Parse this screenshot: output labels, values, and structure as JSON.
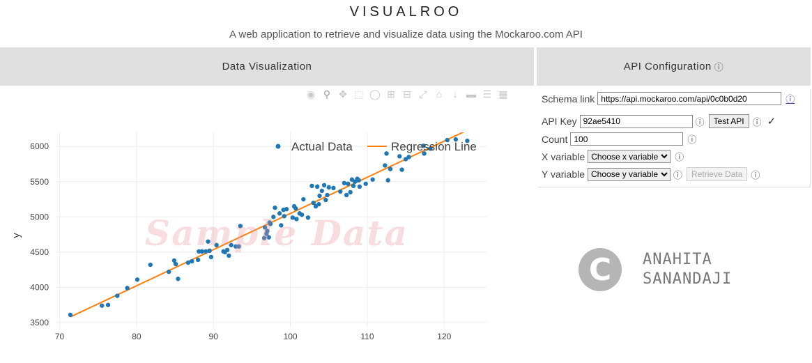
{
  "app": {
    "title": "VISUALROO",
    "subtitle": "A web application to retrieve and visualize data using the Mockaroo.com API"
  },
  "panels": {
    "visualization_title": "Data Visualization",
    "api_title": "API Configuration",
    "info_glyph": "ⓘ"
  },
  "toolbar": {
    "icons": [
      "camera-icon",
      "zoom-icon",
      "pan-icon",
      "box-select-icon",
      "lasso-icon",
      "zoom-in-icon",
      "zoom-out-icon",
      "autoscale-icon",
      "reset-axes-icon",
      "spike-lines-icon",
      "hover-closest-icon",
      "hover-compare-icon",
      "plotly-logo-icon"
    ]
  },
  "watermark": "Sample Data",
  "chart_data": {
    "type": "scatter",
    "ylabel": "y",
    "xlabel": "",
    "xlim": [
      69.5,
      125.5
    ],
    "ylim": [
      3430,
      6200
    ],
    "xticks": [
      70,
      80,
      90,
      100,
      110,
      120
    ],
    "yticks": [
      3500,
      4000,
      4500,
      5000,
      5500,
      6000
    ],
    "grid": true,
    "legend_position": "top-right",
    "series": [
      {
        "name": "Actual Data",
        "mode": "markers",
        "color": "#1f77b4",
        "x": [
          71.4,
          75.5,
          76.3,
          77.5,
          78.8,
          80.1,
          81.8,
          84.2,
          84.9,
          85.1,
          85.4,
          86.7,
          87.2,
          88.0,
          88.1,
          88.5,
          89.0,
          89.3,
          89.5,
          89.7,
          90.4,
          91.3,
          91.5,
          91.8,
          92.0,
          92.3,
          92.9,
          93.3,
          93.5,
          96.7,
          96.9,
          97.0,
          97.2,
          97.3,
          97.4,
          98.0,
          98.6,
          98.8,
          99.2,
          99.5,
          100.3,
          100.5,
          100.8,
          101.2,
          101.5,
          101.7,
          102.3,
          102.8,
          103.0,
          103.3,
          103.5,
          103.8,
          104.1,
          104.4,
          104.8,
          105.0,
          105.6,
          106.5,
          107.0,
          107.3,
          107.8,
          108.0,
          108.2,
          108.4,
          108.7,
          109.0,
          109.8,
          110.7,
          112.3,
          112.5,
          112.7,
          113.0,
          114.2,
          114.5,
          115.0,
          115.4,
          117.3,
          117.4,
          118.2,
          120.4,
          121.5,
          123.0,
          96.6,
          97.8,
          99.1,
          100.7,
          103.7,
          104.6,
          107.5,
          108.9
        ],
        "y": [
          3610,
          3740,
          3750,
          3880,
          3990,
          4110,
          4320,
          4220,
          4380,
          4330,
          4120,
          4350,
          4370,
          4390,
          4510,
          4510,
          4510,
          4650,
          4520,
          4430,
          4600,
          4510,
          4500,
          4530,
          4450,
          4600,
          4580,
          4580,
          4870,
          4850,
          4760,
          4800,
          4710,
          4920,
          4900,
          5130,
          5050,
          4880,
          5010,
          5110,
          4990,
          5150,
          4970,
          5050,
          5030,
          5250,
          4990,
          5440,
          5200,
          5150,
          5430,
          5300,
          5370,
          5450,
          5310,
          5420,
          5410,
          5360,
          5480,
          5310,
          5350,
          5530,
          5440,
          5500,
          5540,
          5430,
          5470,
          5530,
          5730,
          5900,
          5520,
          5680,
          5860,
          5670,
          5820,
          5850,
          6010,
          5900,
          5970,
          6090,
          6100,
          6080,
          4700,
          5000,
          5100,
          5120,
          5180,
          5240,
          5470,
          5520
        ]
      },
      {
        "name": "Regression Line",
        "mode": "lines",
        "color": "#ff7f0e",
        "x": [
          71.4,
          123.0
        ],
        "y": [
          3580,
          6230
        ]
      }
    ]
  },
  "config": {
    "schema_label": "Schema link",
    "schema_value": "https://api.mockaroo.com/api/0c0b0d20",
    "api_key_label": "API Key",
    "api_key_value": "92ae5410",
    "test_button": "Test API",
    "check_mark": "✓",
    "count_label": "Count",
    "count_value": "100",
    "x_label": "X variable",
    "x_select": "Choose x variable",
    "y_label": "Y variable",
    "y_select": "Choose y variable",
    "retrieve_button": "Retrieve Data"
  },
  "logo": {
    "letter": "C",
    "line1": "ANAHITA",
    "line2": "SANANDAJI",
    "color": "#b5b5b5"
  }
}
